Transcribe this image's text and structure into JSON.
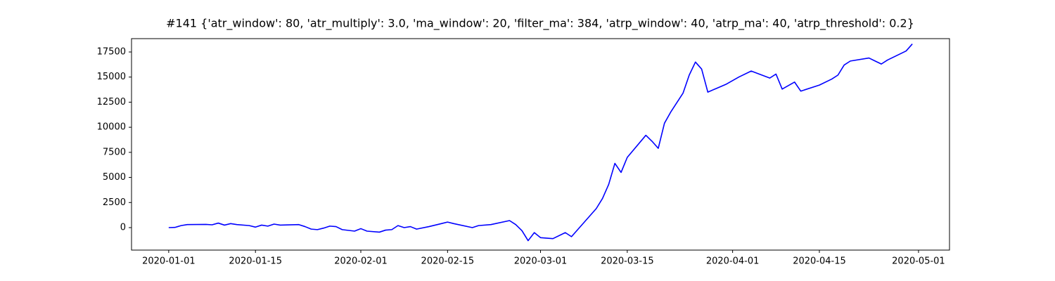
{
  "chart_data": {
    "type": "line",
    "title": "#141 {'atr_window': 80, 'atr_multiply': 3.0, 'ma_window': 20, 'filter_ma': 384, 'atrp_window': 40, 'atrp_ma': 40, 'atrp_threshold': 0.2}",
    "x": [
      "2020-01-01",
      "2020-01-02",
      "2020-01-03",
      "2020-01-04",
      "2020-01-07",
      "2020-01-08",
      "2020-01-09",
      "2020-01-10",
      "2020-01-11",
      "2020-01-12",
      "2020-01-14",
      "2020-01-15",
      "2020-01-16",
      "2020-01-17",
      "2020-01-18",
      "2020-01-19",
      "2020-01-22",
      "2020-01-23",
      "2020-01-24",
      "2020-01-25",
      "2020-01-26",
      "2020-01-27",
      "2020-01-28",
      "2020-01-29",
      "2020-01-31",
      "2020-02-01",
      "2020-02-02",
      "2020-02-04",
      "2020-02-05",
      "2020-02-06",
      "2020-02-07",
      "2020-02-08",
      "2020-02-09",
      "2020-02-10",
      "2020-02-12",
      "2020-02-14",
      "2020-02-15",
      "2020-02-16",
      "2020-02-19",
      "2020-02-20",
      "2020-02-22",
      "2020-02-25",
      "2020-02-26",
      "2020-02-27",
      "2020-02-28",
      "2020-02-29",
      "2020-03-01",
      "2020-03-03",
      "2020-03-05",
      "2020-03-06",
      "2020-03-07",
      "2020-03-10",
      "2020-03-11",
      "2020-03-12",
      "2020-03-13",
      "2020-03-14",
      "2020-03-15",
      "2020-03-18",
      "2020-03-19",
      "2020-03-20",
      "2020-03-21",
      "2020-03-22",
      "2020-03-24",
      "2020-03-25",
      "2020-03-26",
      "2020-03-27",
      "2020-03-28",
      "2020-03-31",
      "2020-04-02",
      "2020-04-04",
      "2020-04-07",
      "2020-04-08",
      "2020-04-09",
      "2020-04-11",
      "2020-04-12",
      "2020-04-15",
      "2020-04-17",
      "2020-04-18",
      "2020-04-19",
      "2020-04-20",
      "2020-04-23",
      "2020-04-24",
      "2020-04-25",
      "2020-04-26",
      "2020-04-29",
      "2020-04-30"
    ],
    "series": [
      {
        "color": "#0000ff",
        "values": [
          0,
          20,
          200,
          300,
          320,
          280,
          450,
          250,
          400,
          300,
          200,
          50,
          250,
          150,
          350,
          250,
          300,
          100,
          -150,
          -200,
          -50,
          150,
          100,
          -200,
          -350,
          -100,
          -350,
          -450,
          -250,
          -200,
          200,
          0,
          100,
          -150,
          100,
          400,
          550,
          400,
          0,
          200,
          300,
          700,
          300,
          -300,
          -1300,
          -500,
          -1000,
          -1100,
          -500,
          -900,
          -200,
          1900,
          2900,
          4300,
          6400,
          5500,
          7000,
          9200,
          8600,
          7900,
          10400,
          11500,
          13400,
          15200,
          16500,
          15800,
          13500,
          14300,
          15000,
          15600,
          14900,
          15300,
          13800,
          14500,
          13600,
          14200,
          14800,
          15200,
          16200,
          16600,
          16900,
          16600,
          16300,
          16700,
          17600,
          18300
        ]
      }
    ],
    "xlim": [
      "2019-12-26",
      "2020-05-06"
    ],
    "xticks": [
      "2020-01-01",
      "2020-01-15",
      "2020-02-01",
      "2020-02-15",
      "2020-03-01",
      "2020-03-15",
      "2020-04-01",
      "2020-04-15",
      "2020-05-01"
    ],
    "ylim": [
      -2240,
      18830
    ],
    "yticks": [
      0,
      2500,
      5000,
      7500,
      10000,
      12500,
      15000,
      17500
    ]
  }
}
